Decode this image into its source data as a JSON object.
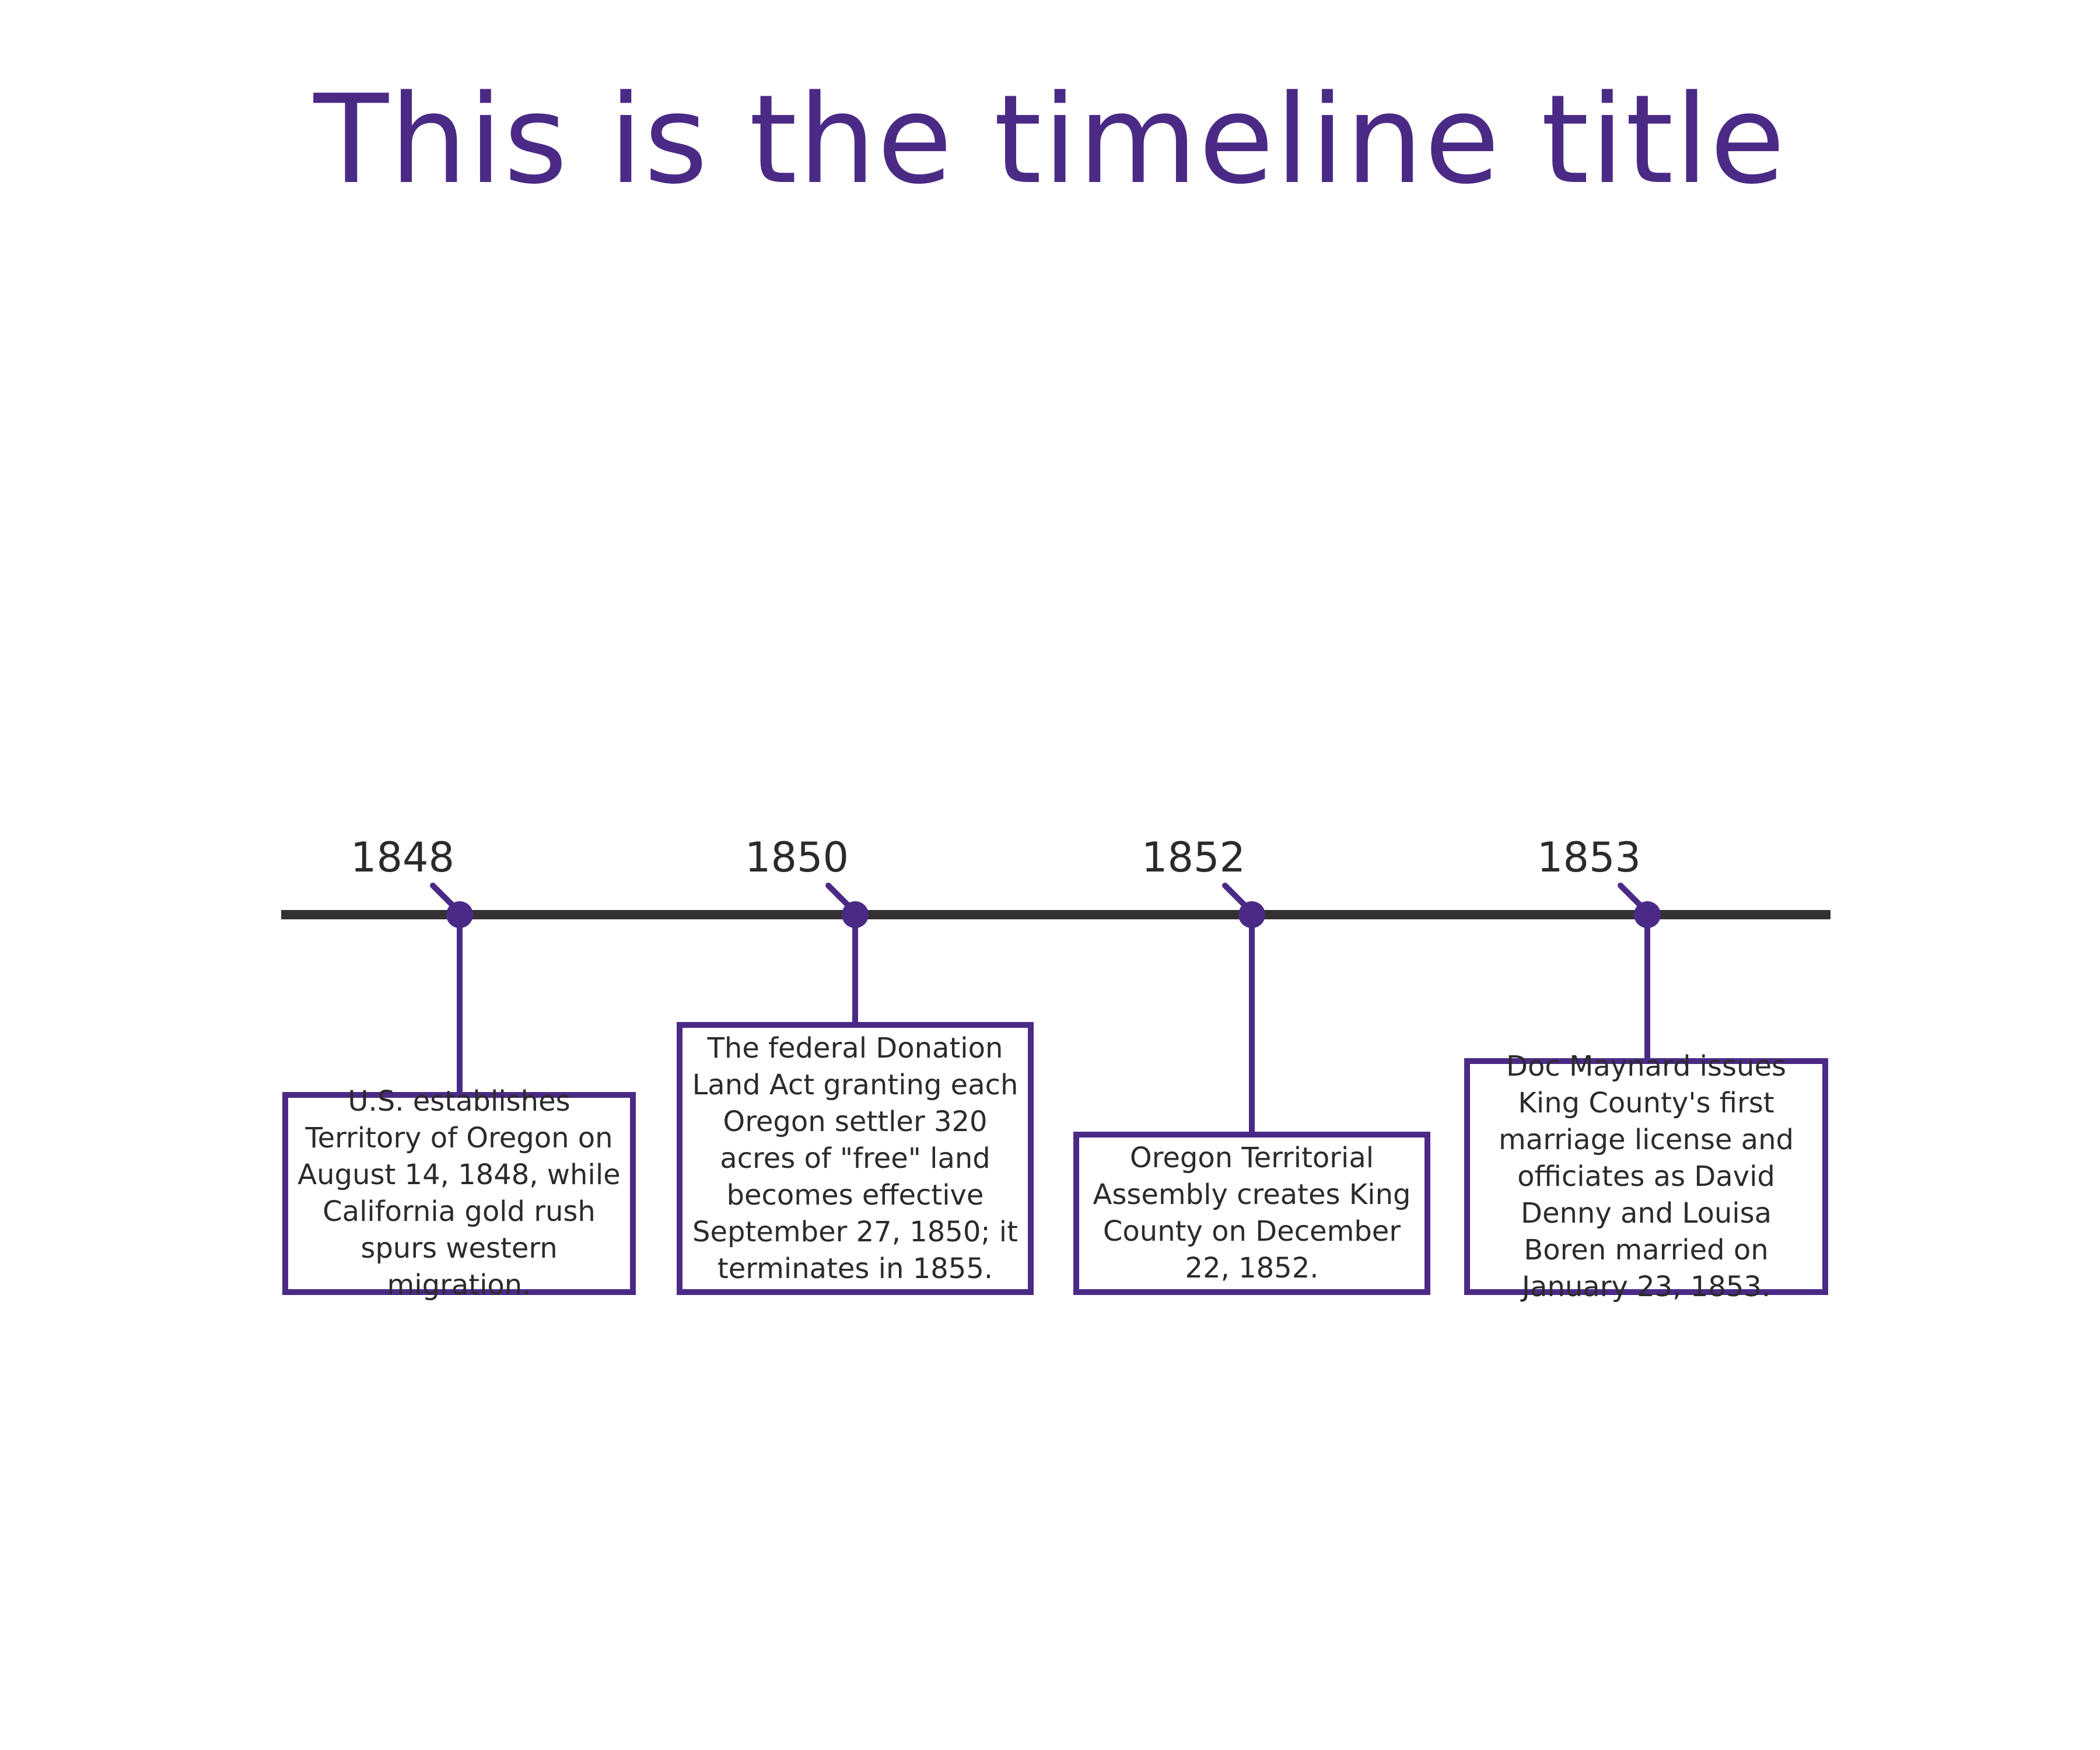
{
  "title": "This is the timeline title",
  "colors": {
    "accent": "#4b2a86",
    "axis": "#333132",
    "text": "#2b2b2b",
    "background": "#ffffff"
  },
  "events": [
    {
      "year": "1848",
      "description": "U.S. establishes Territory of Oregon on August 14, 1848, while California gold rush spurs western migration."
    },
    {
      "year": "1850",
      "description": "The federal Donation Land Act granting each Oregon settler 320 acres of \"free\" land becomes effective September 27, 1850; it terminates in 1855."
    },
    {
      "year": "1852",
      "description": "Oregon Territorial Assembly creates King County on December 22, 1852."
    },
    {
      "year": "1853",
      "description": "Doc Maynard issues King County's first marriage license and officiates as David Denny and Louisa Boren married on January 23, 1853."
    }
  ]
}
